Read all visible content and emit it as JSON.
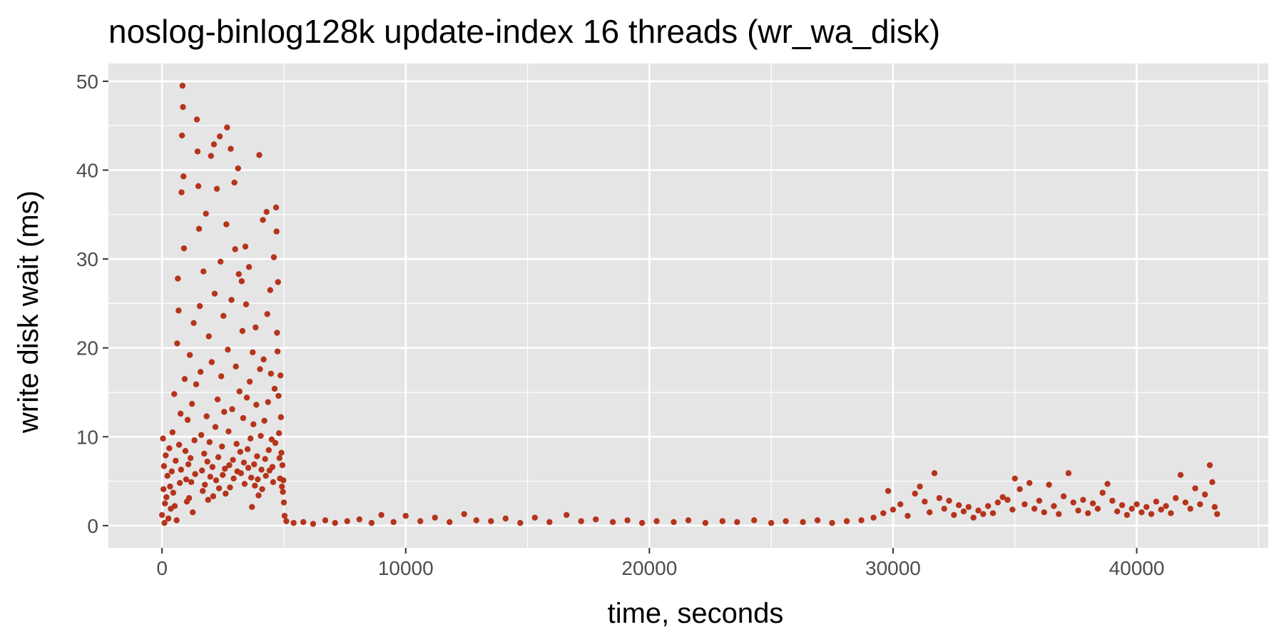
{
  "colors": {
    "panel": "#e5e5e5",
    "grid": "#ffffff",
    "points": "#b5341b",
    "tick_text": "#4d4d4d",
    "tick_mark": "#333333"
  },
  "chart_data": {
    "type": "scatter",
    "title": "noslog-binlog128k update-index 16 threads (wr_wa_disk)",
    "xlabel": "time, seconds",
    "ylabel": "write disk wait (ms)",
    "xlim": [
      -2200,
      45400
    ],
    "ylim": [
      -2.5,
      52.0
    ],
    "xticks": [
      0,
      10000,
      20000,
      30000,
      40000
    ],
    "yticks": [
      0,
      10,
      20,
      30,
      40,
      50
    ],
    "grid": true,
    "legend": "none",
    "series": [
      {
        "points": [
          [
            0,
            1.2
          ],
          [
            40,
            9.8
          ],
          [
            60,
            4.1
          ],
          [
            80,
            6.7
          ],
          [
            100,
            0.3
          ],
          [
            120,
            2.5
          ],
          [
            150,
            7.9
          ],
          [
            180,
            3.2
          ],
          [
            220,
            5.6
          ],
          [
            260,
            0.8
          ],
          [
            300,
            8.7
          ],
          [
            330,
            4.4
          ],
          [
            360,
            1.9
          ],
          [
            400,
            6.1
          ],
          [
            430,
            10.5
          ],
          [
            460,
            3.7
          ],
          [
            500,
            14.8
          ],
          [
            520,
            2.2
          ],
          [
            560,
            7.3
          ],
          [
            600,
            0.6
          ],
          [
            620,
            20.5
          ],
          [
            650,
            27.8
          ],
          [
            680,
            24.2
          ],
          [
            700,
            9.1
          ],
          [
            730,
            4.8
          ],
          [
            760,
            12.6
          ],
          [
            780,
            6.3
          ],
          [
            800,
            37.5
          ],
          [
            820,
            43.9
          ],
          [
            840,
            49.5
          ],
          [
            860,
            47.1
          ],
          [
            880,
            39.3
          ],
          [
            900,
            31.2
          ],
          [
            930,
            16.5
          ],
          [
            960,
            8.4
          ],
          [
            990,
            5.2
          ],
          [
            1020,
            2.7
          ],
          [
            1050,
            11.9
          ],
          [
            1080,
            6.9
          ],
          [
            1110,
            3.1
          ],
          [
            1140,
            19.2
          ],
          [
            1170,
            7.6
          ],
          [
            1200,
            4.9
          ],
          [
            1230,
            13.7
          ],
          [
            1260,
            1.5
          ],
          [
            1300,
            22.8
          ],
          [
            1330,
            9.6
          ],
          [
            1360,
            5.8
          ],
          [
            1400,
            15.9
          ],
          [
            1430,
            45.7
          ],
          [
            1460,
            42.1
          ],
          [
            1490,
            38.2
          ],
          [
            1520,
            33.4
          ],
          [
            1550,
            24.7
          ],
          [
            1580,
            17.3
          ],
          [
            1610,
            10.2
          ],
          [
            1640,
            6.2
          ],
          [
            1670,
            3.9
          ],
          [
            1700,
            28.6
          ],
          [
            1730,
            8.1
          ],
          [
            1760,
            4.6
          ],
          [
            1800,
            35.1
          ],
          [
            1830,
            12.3
          ],
          [
            1860,
            7.2
          ],
          [
            1890,
            2.9
          ],
          [
            1920,
            21.3
          ],
          [
            1950,
            9.4
          ],
          [
            1980,
            5.5
          ],
          [
            2010,
            41.6
          ],
          [
            2040,
            18.4
          ],
          [
            2070,
            6.6
          ],
          [
            2100,
            3.3
          ],
          [
            2130,
            42.9
          ],
          [
            2160,
            26.1
          ],
          [
            2190,
            11.1
          ],
          [
            2220,
            5.1
          ],
          [
            2250,
            37.9
          ],
          [
            2280,
            14.2
          ],
          [
            2310,
            7.7
          ],
          [
            2340,
            4.2
          ],
          [
            2370,
            43.8
          ],
          [
            2400,
            29.7
          ],
          [
            2430,
            16.8
          ],
          [
            2460,
            8.9
          ],
          [
            2490,
            5.7
          ],
          [
            2520,
            23.6
          ],
          [
            2550,
            12.8
          ],
          [
            2580,
            6.4
          ],
          [
            2610,
            3.6
          ],
          [
            2640,
            33.9
          ],
          [
            2670,
            44.8
          ],
          [
            2700,
            19.8
          ],
          [
            2730,
            10.6
          ],
          [
            2760,
            6.8
          ],
          [
            2790,
            4.3
          ],
          [
            2820,
            42.4
          ],
          [
            2850,
            25.4
          ],
          [
            2880,
            13.1
          ],
          [
            2910,
            7.4
          ],
          [
            2940,
            5.3
          ],
          [
            2970,
            38.6
          ],
          [
            3000,
            31.1
          ],
          [
            3030,
            17.9
          ],
          [
            3060,
            9.2
          ],
          [
            3090,
            6.1
          ],
          [
            3120,
            40.2
          ],
          [
            3150,
            28.3
          ],
          [
            3180,
            15.1
          ],
          [
            3210,
            8.3
          ],
          [
            3240,
            5.9
          ],
          [
            3270,
            27.5
          ],
          [
            3300,
            21.9
          ],
          [
            3330,
            12.1
          ],
          [
            3360,
            7.1
          ],
          [
            3390,
            4.7
          ],
          [
            3420,
            31.4
          ],
          [
            3450,
            24.9
          ],
          [
            3480,
            14.4
          ],
          [
            3510,
            8.6
          ],
          [
            3540,
            6.5
          ],
          [
            3570,
            29.1
          ],
          [
            3600,
            16.2
          ],
          [
            3630,
            9.8
          ],
          [
            3660,
            5.4
          ],
          [
            3690,
            2.1
          ],
          [
            3720,
            19.5
          ],
          [
            3750,
            11.4
          ],
          [
            3780,
            6.9
          ],
          [
            3810,
            4.5
          ],
          [
            3840,
            22.3
          ],
          [
            3870,
            13.6
          ],
          [
            3900,
            7.8
          ],
          [
            3930,
            5.2
          ],
          [
            3960,
            3.4
          ],
          [
            3990,
            41.7
          ],
          [
            4020,
            17.6
          ],
          [
            4050,
            10.1
          ],
          [
            4080,
            6.3
          ],
          [
            4110,
            4.1
          ],
          [
            4140,
            34.4
          ],
          [
            4170,
            18.7
          ],
          [
            4200,
            11.8
          ],
          [
            4230,
            7.5
          ],
          [
            4260,
            5.6
          ],
          [
            4290,
            35.3
          ],
          [
            4320,
            23.8
          ],
          [
            4350,
            13.9
          ],
          [
            4380,
            8.5
          ],
          [
            4410,
            6.2
          ],
          [
            4440,
            26.5
          ],
          [
            4470,
            17.1
          ],
          [
            4500,
            9.7
          ],
          [
            4530,
            6.6
          ],
          [
            4560,
            4.9
          ],
          [
            4590,
            30.2
          ],
          [
            4620,
            15.4
          ],
          [
            4650,
            9.3
          ],
          [
            4680,
            35.8
          ],
          [
            4700,
            33.1
          ],
          [
            4720,
            21.7
          ],
          [
            4740,
            19.6
          ],
          [
            4760,
            27.4
          ],
          [
            4780,
            14.6
          ],
          [
            4800,
            10.4
          ],
          [
            4820,
            7.6
          ],
          [
            4840,
            5.3
          ],
          [
            4860,
            16.9
          ],
          [
            4880,
            12.2
          ],
          [
            4900,
            8.2
          ],
          [
            4920,
            4.4
          ],
          [
            4940,
            6.8
          ],
          [
            4960,
            3.8
          ],
          [
            4980,
            5.1
          ],
          [
            5000,
            2.6
          ],
          [
            5030,
            1.1
          ],
          [
            5100,
            0.5
          ],
          [
            5400,
            0.3
          ],
          [
            5800,
            0.4
          ],
          [
            6200,
            0.2
          ],
          [
            6700,
            0.6
          ],
          [
            7100,
            0.3
          ],
          [
            7600,
            0.5
          ],
          [
            8100,
            0.7
          ],
          [
            8600,
            0.3
          ],
          [
            9000,
            1.2
          ],
          [
            9500,
            0.4
          ],
          [
            10000,
            1.1
          ],
          [
            10600,
            0.5
          ],
          [
            11200,
            0.9
          ],
          [
            11800,
            0.4
          ],
          [
            12400,
            1.3
          ],
          [
            12900,
            0.6
          ],
          [
            13500,
            0.5
          ],
          [
            14100,
            0.8
          ],
          [
            14700,
            0.3
          ],
          [
            15300,
            0.9
          ],
          [
            15900,
            0.4
          ],
          [
            16600,
            1.2
          ],
          [
            17200,
            0.5
          ],
          [
            17800,
            0.7
          ],
          [
            18500,
            0.4
          ],
          [
            19100,
            0.6
          ],
          [
            19700,
            0.3
          ],
          [
            20300,
            0.5
          ],
          [
            21000,
            0.4
          ],
          [
            21600,
            0.6
          ],
          [
            22300,
            0.3
          ],
          [
            23000,
            0.5
          ],
          [
            23600,
            0.4
          ],
          [
            24300,
            0.6
          ],
          [
            25000,
            0.3
          ],
          [
            25600,
            0.5
          ],
          [
            26300,
            0.4
          ],
          [
            26900,
            0.6
          ],
          [
            27500,
            0.3
          ],
          [
            28100,
            0.5
          ],
          [
            28700,
            0.6
          ],
          [
            29200,
            0.9
          ],
          [
            29600,
            1.4
          ],
          [
            29800,
            3.9
          ],
          [
            30000,
            1.8
          ],
          [
            30300,
            2.4
          ],
          [
            30600,
            1.1
          ],
          [
            30900,
            3.6
          ],
          [
            31100,
            4.4
          ],
          [
            31300,
            2.7
          ],
          [
            31500,
            1.5
          ],
          [
            31700,
            5.9
          ],
          [
            31900,
            3.1
          ],
          [
            32100,
            1.9
          ],
          [
            32300,
            2.8
          ],
          [
            32500,
            1.2
          ],
          [
            32700,
            2.3
          ],
          [
            32900,
            1.6
          ],
          [
            33100,
            2.1
          ],
          [
            33300,
            0.9
          ],
          [
            33500,
            1.7
          ],
          [
            33700,
            1.3
          ],
          [
            33900,
            2.2
          ],
          [
            34100,
            1.4
          ],
          [
            34300,
            2.6
          ],
          [
            34500,
            3.2
          ],
          [
            34700,
            2.9
          ],
          [
            34900,
            1.8
          ],
          [
            35000,
            5.3
          ],
          [
            35200,
            4.1
          ],
          [
            35400,
            2.4
          ],
          [
            35600,
            4.8
          ],
          [
            35800,
            1.9
          ],
          [
            36000,
            2.8
          ],
          [
            36200,
            1.5
          ],
          [
            36400,
            4.6
          ],
          [
            36600,
            2.2
          ],
          [
            36800,
            1.3
          ],
          [
            37000,
            3.3
          ],
          [
            37200,
            5.9
          ],
          [
            37400,
            2.6
          ],
          [
            37600,
            1.7
          ],
          [
            37800,
            2.9
          ],
          [
            38000,
            1.4
          ],
          [
            38200,
            2.5
          ],
          [
            38400,
            1.9
          ],
          [
            38600,
            3.7
          ],
          [
            38800,
            4.7
          ],
          [
            39000,
            2.8
          ],
          [
            39200,
            1.6
          ],
          [
            39400,
            2.3
          ],
          [
            39600,
            1.2
          ],
          [
            39800,
            1.9
          ],
          [
            40000,
            2.4
          ],
          [
            40200,
            1.5
          ],
          [
            40400,
            2.1
          ],
          [
            40600,
            1.3
          ],
          [
            40800,
            2.7
          ],
          [
            41000,
            1.8
          ],
          [
            41200,
            2.2
          ],
          [
            41400,
            1.4
          ],
          [
            41600,
            3.1
          ],
          [
            41800,
            5.7
          ],
          [
            42000,
            2.6
          ],
          [
            42200,
            1.9
          ],
          [
            42400,
            4.2
          ],
          [
            42600,
            2.4
          ],
          [
            42800,
            3.5
          ],
          [
            43000,
            6.8
          ],
          [
            43100,
            4.9
          ],
          [
            43200,
            2.1
          ],
          [
            43300,
            1.3
          ]
        ]
      }
    ]
  }
}
